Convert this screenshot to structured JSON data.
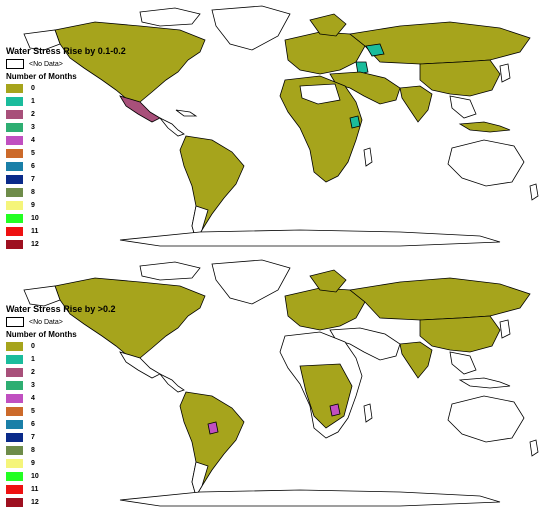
{
  "maps": [
    {
      "title": "Water Stress Rise by 0.1-0.2",
      "nodata_label": "<No Data>",
      "legend_subtitle": "Number of Months",
      "legend_items": [
        {
          "label": "0",
          "color": "#a6a41c"
        },
        {
          "label": "1",
          "color": "#1abc9c"
        },
        {
          "label": "2",
          "color": "#a8507a"
        },
        {
          "label": "3",
          "color": "#2eae72"
        },
        {
          "label": "4",
          "color": "#c04fc0"
        },
        {
          "label": "5",
          "color": "#cc6a2a"
        },
        {
          "label": "6",
          "color": "#1a7fa8"
        },
        {
          "label": "7",
          "color": "#0a2a8a"
        },
        {
          "label": "8",
          "color": "#6e8c4a"
        },
        {
          "label": "9",
          "color": "#f5f57a"
        },
        {
          "label": "10",
          "color": "#22ff22"
        },
        {
          "label": "11",
          "color": "#ee1111"
        },
        {
          "label": "12",
          "color": "#9e1020"
        }
      ]
    },
    {
      "title": "Water Stress Rise by >0.2",
      "nodata_label": "<No Data>",
      "legend_subtitle": "Number of Months",
      "legend_items": [
        {
          "label": "0",
          "color": "#a6a41c"
        },
        {
          "label": "1",
          "color": "#1abc9c"
        },
        {
          "label": "2",
          "color": "#a8507a"
        },
        {
          "label": "3",
          "color": "#2eae72"
        },
        {
          "label": "4",
          "color": "#c04fc0"
        },
        {
          "label": "5",
          "color": "#cc6a2a"
        },
        {
          "label": "6",
          "color": "#1a7fa8"
        },
        {
          "label": "7",
          "color": "#0a2a8a"
        },
        {
          "label": "8",
          "color": "#6e8c4a"
        },
        {
          "label": "9",
          "color": "#f5f57a"
        },
        {
          "label": "10",
          "color": "#22ff22"
        },
        {
          "label": "11",
          "color": "#ee1111"
        },
        {
          "label": "12",
          "color": "#9e1020"
        }
      ]
    }
  ]
}
